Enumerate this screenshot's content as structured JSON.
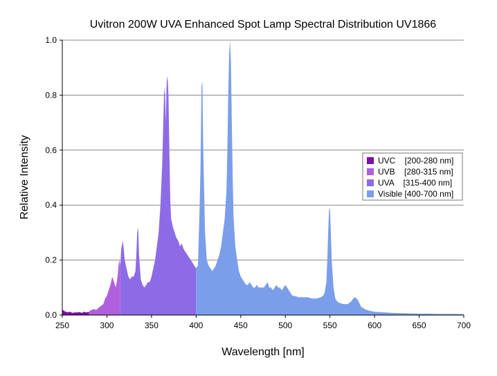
{
  "chart_data": {
    "type": "area",
    "title": "Uvitron 200W UVA Enhanced Spot Lamp Spectral Distribution UV1866",
    "xlabel": "Wavelength [nm]",
    "ylabel": "Relative Intensity",
    "xlim": [
      250,
      700
    ],
    "ylim": [
      0,
      1.0
    ],
    "xticks": [
      250,
      300,
      350,
      400,
      450,
      500,
      550,
      600,
      650,
      700
    ],
    "yticks": [
      0.0,
      0.2,
      0.4,
      0.6,
      0.8,
      1.0
    ],
    "ytick_labels": [
      "0.0",
      "0.2",
      "0.4",
      "0.6",
      "0.8",
      "1.0"
    ],
    "grid": "horizontal",
    "legend_position": "right",
    "series": [
      {
        "name": "UVC    [200-280 nm]",
        "range": [
          250,
          280
        ],
        "color": "#7c10a8"
      },
      {
        "name": "UVB    [280-315 nm]",
        "range": [
          280,
          315
        ],
        "color": "#b060dc"
      },
      {
        "name": "UVA    [315-400 nm]",
        "range": [
          315,
          400
        ],
        "color": "#8e6be6"
      },
      {
        "name": "Visible [400-700 nm]",
        "range": [
          400,
          700
        ],
        "color": "#7b9eea"
      }
    ],
    "x": [
      250,
      252,
      254,
      256,
      258,
      260,
      262,
      264,
      266,
      268,
      270,
      272,
      274,
      276,
      278,
      280,
      282,
      284,
      286,
      288,
      290,
      292,
      294,
      296,
      298,
      300,
      302,
      304,
      306,
      308,
      310,
      312,
      313,
      314,
      315,
      316,
      318,
      320,
      322,
      324,
      326,
      328,
      330,
      332,
      333,
      334,
      335,
      336,
      338,
      340,
      342,
      344,
      346,
      348,
      350,
      352,
      354,
      356,
      358,
      360,
      362,
      364,
      365,
      366,
      367,
      368,
      369,
      370,
      371,
      372,
      374,
      376,
      378,
      380,
      382,
      384,
      386,
      388,
      390,
      392,
      394,
      396,
      398,
      400,
      402,
      404,
      405,
      406,
      407,
      408,
      410,
      412,
      414,
      416,
      418,
      420,
      422,
      424,
      426,
      428,
      430,
      432,
      434,
      435,
      436,
      437,
      438,
      439,
      440,
      441,
      442,
      444,
      446,
      448,
      450,
      452,
      454,
      456,
      458,
      460,
      462,
      464,
      466,
      468,
      470,
      472,
      474,
      476,
      478,
      480,
      482,
      484,
      486,
      488,
      490,
      492,
      494,
      496,
      498,
      500,
      502,
      504,
      506,
      508,
      510,
      515,
      520,
      525,
      530,
      535,
      540,
      542,
      544,
      545,
      546,
      547,
      548,
      549,
      550,
      551,
      552,
      554,
      556,
      558,
      560,
      565,
      570,
      572,
      574,
      576,
      578,
      580,
      582,
      585,
      590,
      595,
      600,
      610,
      620,
      630,
      640,
      650,
      660,
      670,
      680,
      690,
      700
    ],
    "y": [
      0.02,
      0.015,
      0.012,
      0.01,
      0.012,
      0.01,
      0.008,
      0.01,
      0.009,
      0.011,
      0.01,
      0.008,
      0.012,
      0.01,
      0.01,
      0.012,
      0.018,
      0.02,
      0.022,
      0.018,
      0.025,
      0.03,
      0.035,
      0.04,
      0.06,
      0.07,
      0.09,
      0.11,
      0.14,
      0.12,
      0.1,
      0.14,
      0.18,
      0.2,
      0.18,
      0.24,
      0.27,
      0.2,
      0.17,
      0.14,
      0.13,
      0.14,
      0.14,
      0.16,
      0.22,
      0.3,
      0.32,
      0.22,
      0.13,
      0.11,
      0.1,
      0.11,
      0.12,
      0.12,
      0.14,
      0.17,
      0.2,
      0.25,
      0.3,
      0.4,
      0.55,
      0.8,
      0.83,
      0.7,
      0.85,
      0.87,
      0.8,
      0.6,
      0.42,
      0.35,
      0.32,
      0.3,
      0.28,
      0.27,
      0.25,
      0.26,
      0.24,
      0.23,
      0.22,
      0.21,
      0.2,
      0.19,
      0.18,
      0.17,
      0.18,
      0.4,
      0.55,
      0.83,
      0.85,
      0.6,
      0.3,
      0.2,
      0.18,
      0.17,
      0.16,
      0.17,
      0.18,
      0.2,
      0.22,
      0.25,
      0.3,
      0.35,
      0.45,
      0.6,
      0.8,
      0.95,
      1.0,
      0.92,
      0.7,
      0.5,
      0.35,
      0.25,
      0.2,
      0.16,
      0.14,
      0.13,
      0.12,
      0.11,
      0.11,
      0.12,
      0.11,
      0.1,
      0.1,
      0.11,
      0.1,
      0.1,
      0.1,
      0.1,
      0.11,
      0.12,
      0.1,
      0.1,
      0.09,
      0.1,
      0.11,
      0.1,
      0.1,
      0.09,
      0.1,
      0.11,
      0.1,
      0.09,
      0.08,
      0.07,
      0.07,
      0.065,
      0.065,
      0.065,
      0.06,
      0.06,
      0.065,
      0.07,
      0.08,
      0.1,
      0.12,
      0.2,
      0.3,
      0.38,
      0.39,
      0.3,
      0.2,
      0.1,
      0.06,
      0.05,
      0.045,
      0.04,
      0.04,
      0.045,
      0.05,
      0.06,
      0.065,
      0.06,
      0.05,
      0.03,
      0.02,
      0.015,
      0.012,
      0.01,
      0.008,
      0.007,
      0.006,
      0.005,
      0.005,
      0.004,
      0.004,
      0.004,
      0.003
    ]
  }
}
